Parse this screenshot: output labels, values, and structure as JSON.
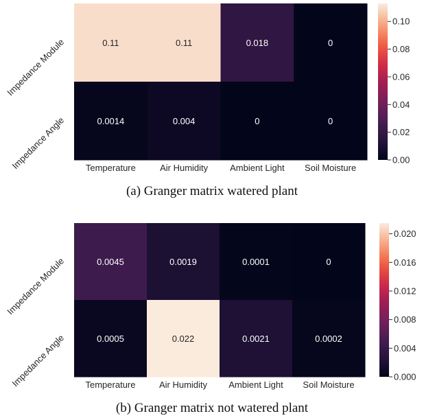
{
  "chart_data": [
    {
      "type": "heatmap",
      "rows": [
        "Impedance Module",
        "Impedance Angle"
      ],
      "columns": [
        "Temperature",
        "Air Humidity",
        "Ambient Light",
        "Soil Moisture"
      ],
      "values": [
        [
          0.11,
          0.11,
          0.018,
          0
        ],
        [
          0.0014,
          0.004,
          0,
          0
        ]
      ],
      "cell_labels": [
        [
          "0.11",
          "0.11",
          "0.018",
          "0"
        ],
        [
          "0.0014",
          "0.004",
          "0",
          "0"
        ]
      ],
      "vmin": 0,
      "vmax": 0.113,
      "colorbar_ticks": [
        0.0,
        0.02,
        0.04,
        0.06,
        0.08,
        0.1
      ],
      "colorbar_tick_labels": [
        "0.00",
        "0.02",
        "0.04",
        "0.06",
        "0.08",
        "0.10"
      ],
      "colormap": "rocket",
      "caption": "(a) Granger matrix watered plant"
    },
    {
      "type": "heatmap",
      "rows": [
        "Impedance Module",
        "Impedance Angle"
      ],
      "columns": [
        "Temperature",
        "Air Humidity",
        "Ambient Light",
        "Soil Moisture"
      ],
      "values": [
        [
          0.0045,
          0.0019,
          0.0001,
          0
        ],
        [
          0.0005,
          0.022,
          0.0021,
          0.0002
        ]
      ],
      "cell_labels": [
        [
          "0.0045",
          "0.0019",
          "0.0001",
          "0"
        ],
        [
          "0.0005",
          "0.022",
          "0.0021",
          "0.0002"
        ]
      ],
      "vmin": 0,
      "vmax": 0.0215,
      "colorbar_ticks": [
        0.0,
        0.004,
        0.008,
        0.012,
        0.016,
        0.02
      ],
      "colorbar_tick_labels": [
        "0.000",
        "0.004",
        "0.008",
        "0.012",
        "0.016",
        "0.020"
      ],
      "colormap": "rocket",
      "caption": "(b) Granger matrix not watered plant"
    }
  ]
}
